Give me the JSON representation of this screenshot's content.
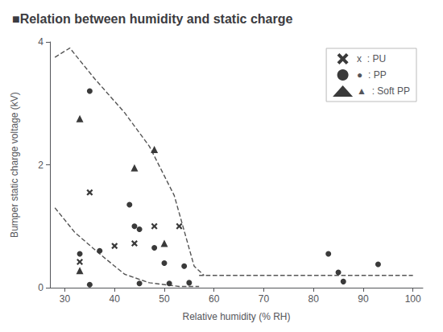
{
  "chart_data": {
    "type": "scatter",
    "title": "■Relation between humidity and static charge",
    "xlabel": "Relative humidity (% RH)",
    "ylabel": "Bumper static charge voltage (kV)",
    "xlim": [
      27,
      102
    ],
    "ylim": [
      0,
      4.0
    ],
    "xticks": [
      30,
      40,
      50,
      60,
      70,
      80,
      90,
      100
    ],
    "yticks": [
      0,
      2,
      4
    ],
    "grid": false,
    "legend": "upper right",
    "series": [
      {
        "name": "x  : PU",
        "type": "scatter",
        "marker": "x",
        "color": "#3a3a3a",
        "x": [
          33,
          35,
          40,
          44,
          48,
          53
        ],
        "values": [
          0.42,
          1.55,
          0.68,
          0.72,
          1.0,
          1.0
        ]
      },
      {
        "name": "●  : PP",
        "type": "scatter",
        "marker": "circle",
        "color": "#3a3a3a",
        "x": [
          33,
          35,
          35,
          37,
          43,
          44,
          45,
          45,
          48,
          50,
          51,
          54,
          55,
          83,
          85,
          86,
          93
        ],
        "values": [
          0.55,
          3.2,
          0.05,
          0.6,
          1.35,
          1.0,
          0.95,
          0.07,
          0.65,
          0.4,
          0.07,
          0.35,
          0.08,
          0.55,
          0.25,
          0.1,
          0.38
        ]
      },
      {
        "name": "▲  : Soft PP",
        "type": "scatter",
        "marker": "triangle",
        "color": "#3a3a3a",
        "x": [
          33,
          33,
          44,
          48,
          50
        ],
        "values": [
          2.75,
          0.28,
          1.95,
          2.25,
          0.72
        ]
      },
      {
        "type": "line",
        "line_style": "dashed",
        "color": "#555555",
        "x": [
          28,
          31,
          36,
          42,
          47,
          52,
          56,
          58
        ],
        "values": [
          3.75,
          3.9,
          3.4,
          2.85,
          2.3,
          1.5,
          0.35,
          0.2
        ]
      },
      {
        "type": "line",
        "line_style": "dashed",
        "color": "#555555",
        "x": [
          28,
          32,
          37,
          42,
          47,
          53,
          57
        ],
        "values": [
          1.3,
          0.9,
          0.55,
          0.22,
          0.08,
          0.02,
          0.02
        ]
      },
      {
        "type": "line",
        "line_style": "dashed",
        "color": "#555555",
        "x": [
          57,
          60,
          65,
          70,
          75,
          80,
          85,
          90,
          95,
          100
        ],
        "values": [
          0.2,
          0.2,
          0.2,
          0.2,
          0.2,
          0.2,
          0.2,
          0.2,
          0.2,
          0.2
        ]
      }
    ]
  }
}
